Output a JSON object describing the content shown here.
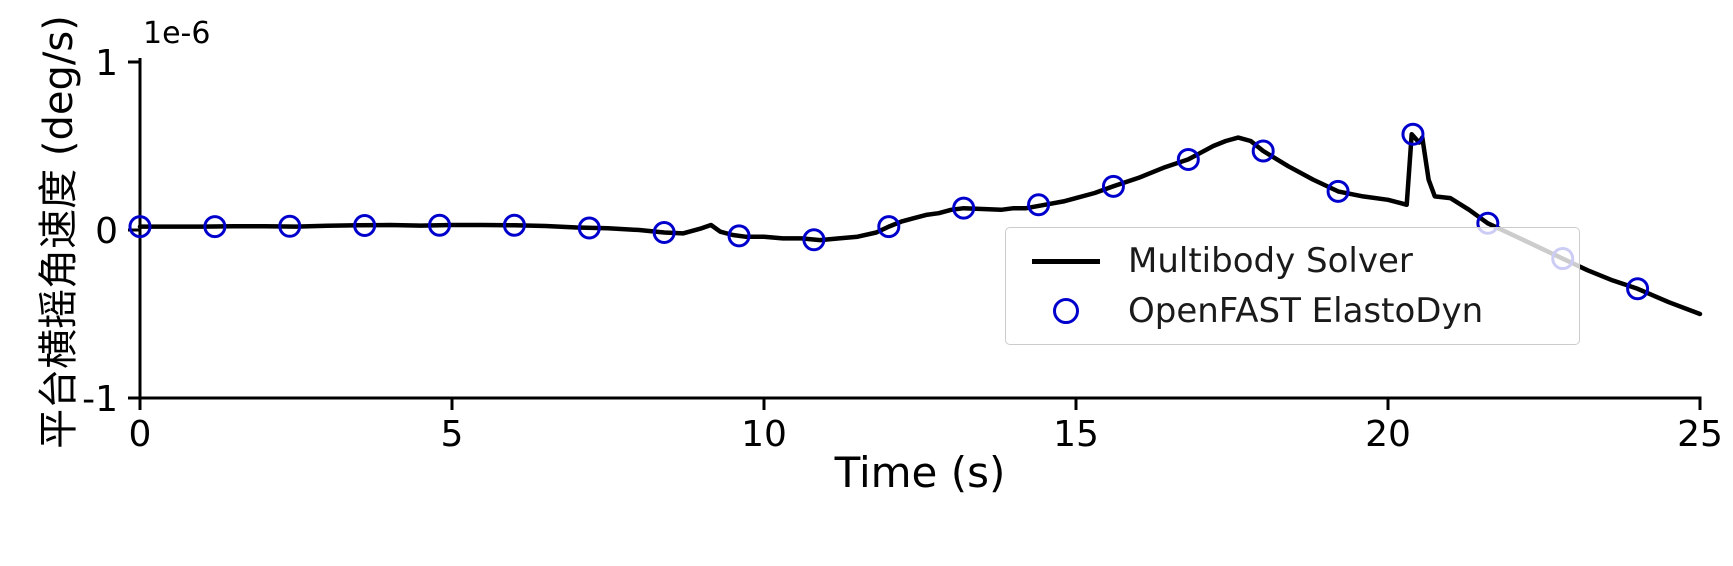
{
  "colors": {
    "line": "#000000",
    "marker": "#0000cd",
    "spine": "#000000",
    "legend_border": "#cccccc"
  },
  "chart_data": {
    "type": "line",
    "title": "",
    "xlabel": "Time (s)",
    "ylabel": "平台横摇角速度 (deg/s)",
    "offset_label": "1e-6",
    "y_units_note": "y values are in units of 1e-6 deg/s",
    "xlim": [
      0,
      25
    ],
    "ylim": [
      -1,
      1
    ],
    "xticks": [
      0,
      5,
      10,
      15,
      20,
      25
    ],
    "xtick_labels": [
      "0",
      "5",
      "10",
      "15",
      "20",
      "25"
    ],
    "yticks": [
      1,
      0,
      -1
    ],
    "ytick_labels": [
      "1",
      "0",
      "-1"
    ],
    "grid": false,
    "legend_position": "lower right",
    "series": [
      {
        "name": "Multibody Solver",
        "style": "line",
        "color": "#000000",
        "x": [
          0,
          0.5,
          1.0,
          1.5,
          2.0,
          2.5,
          3.0,
          3.5,
          4.0,
          4.5,
          5.0,
          5.5,
          6.0,
          6.5,
          7.0,
          7.5,
          8.0,
          8.4,
          8.7,
          9.0,
          9.15,
          9.3,
          9.5,
          9.7,
          10.0,
          10.3,
          10.6,
          10.9,
          11.2,
          11.5,
          11.8,
          12.0,
          12.2,
          12.4,
          12.6,
          12.8,
          13.0,
          13.2,
          13.5,
          13.8,
          14.0,
          14.2,
          14.5,
          14.8,
          15.0,
          15.3,
          15.6,
          16.0,
          16.4,
          16.8,
          17.0,
          17.2,
          17.4,
          17.6,
          17.8,
          18.0,
          18.4,
          18.8,
          19.2,
          19.6,
          20.0,
          20.2,
          20.3,
          20.38,
          20.5,
          20.55,
          20.65,
          20.75,
          21.0,
          21.3,
          21.6,
          22.0,
          22.4,
          22.8,
          23.2,
          23.6,
          24.0,
          24.5,
          25.0
        ],
        "y": [
          0.02,
          0.02,
          0.02,
          0.022,
          0.022,
          0.02,
          0.025,
          0.028,
          0.03,
          0.026,
          0.03,
          0.03,
          0.028,
          0.024,
          0.015,
          0.01,
          0.0,
          -0.015,
          -0.02,
          0.01,
          0.03,
          -0.01,
          -0.03,
          -0.04,
          -0.04,
          -0.05,
          -0.05,
          -0.06,
          -0.05,
          -0.04,
          -0.015,
          0.02,
          0.05,
          0.07,
          0.09,
          0.1,
          0.12,
          0.13,
          0.125,
          0.12,
          0.13,
          0.13,
          0.15,
          0.17,
          0.19,
          0.22,
          0.26,
          0.31,
          0.37,
          0.42,
          0.46,
          0.5,
          0.53,
          0.55,
          0.53,
          0.47,
          0.38,
          0.3,
          0.23,
          0.2,
          0.18,
          0.16,
          0.15,
          0.57,
          0.52,
          0.55,
          0.3,
          0.2,
          0.19,
          0.12,
          0.04,
          -0.03,
          -0.1,
          -0.17,
          -0.24,
          -0.3,
          -0.35,
          -0.43,
          -0.5
        ]
      },
      {
        "name": "OpenFAST ElastoDyn",
        "style": "scatter-circle",
        "color": "#0000cd",
        "x": [
          0,
          1.2,
          2.4,
          3.6,
          4.8,
          6.0,
          7.2,
          8.4,
          9.6,
          10.8,
          12.0,
          13.2,
          14.4,
          15.6,
          16.8,
          18.0,
          19.2,
          20.4,
          21.6,
          22.8,
          24.0
        ],
        "y": [
          0.02,
          0.02,
          0.022,
          0.027,
          0.028,
          0.028,
          0.012,
          -0.015,
          -0.035,
          -0.058,
          0.02,
          0.13,
          0.15,
          0.26,
          0.42,
          0.47,
          0.23,
          0.57,
          0.04,
          -0.17,
          -0.35
        ]
      }
    ]
  }
}
